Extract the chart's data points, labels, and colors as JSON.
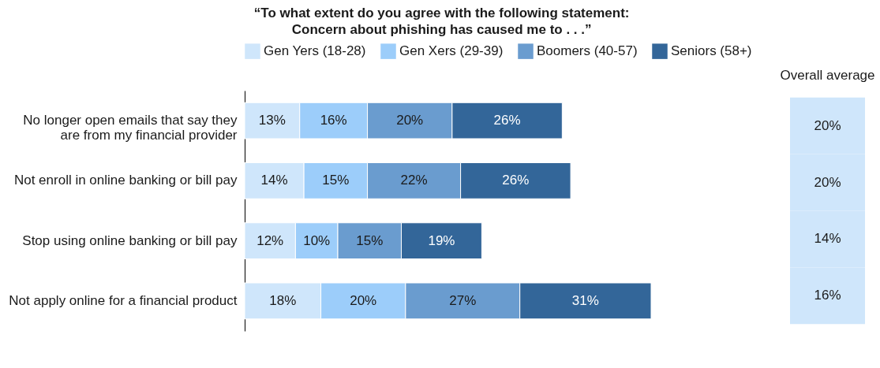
{
  "chart_data": [
    {
      "type": "bar",
      "title": "“To what extent do you agree with the following statement: Concern about phishing has caused me to . . .”",
      "orientation": "horizontal",
      "stacked": true,
      "data_labels": true,
      "legend": "top",
      "categories": [
        "No longer open emails that say they are from my financial provider",
        "Not enroll in online banking or bill pay",
        "Stop using online banking or bill pay",
        "Not apply online for a financial product"
      ],
      "series": [
        {
          "name": "Gen Yers (18-28)",
          "color": "#cfe6fb",
          "values": [
            13,
            14,
            12,
            18
          ],
          "value_labels": [
            "13%",
            "14%",
            "12%",
            "18%"
          ]
        },
        {
          "name": "Gen Xers (29-39)",
          "color": "#9ccdfa",
          "values": [
            16,
            15,
            10,
            20
          ],
          "value_labels": [
            "16%",
            "15%",
            "10%",
            "20%"
          ]
        },
        {
          "name": "Boomers (40-57)",
          "color": "#6a9ccf",
          "values": [
            20,
            22,
            15,
            27
          ],
          "value_labels": [
            "20%",
            "22%",
            "15%",
            "27%"
          ]
        },
        {
          "name": "Seniors (58+)",
          "color": "#336699",
          "values": [
            26,
            26,
            19,
            31
          ],
          "value_labels": [
            "26%",
            "26%",
            "19%",
            "31%"
          ]
        }
      ]
    },
    {
      "type": "other",
      "title": "Overall average",
      "color": "#cfe6fb",
      "values": [
        20,
        20,
        14,
        16
      ],
      "value_labels": [
        "20%",
        "20%",
        "14%",
        "16%"
      ]
    }
  ]
}
